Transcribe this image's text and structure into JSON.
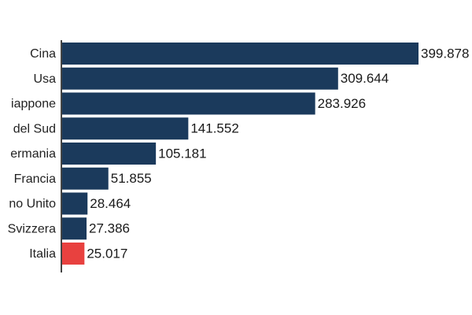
{
  "chart_data": {
    "type": "bar",
    "orientation": "horizontal",
    "categories": [
      "Cina",
      "Usa",
      "iappone",
      "del Sud",
      "ermania",
      "Francia",
      "no Unito",
      "Svizzera",
      "Italia"
    ],
    "values": [
      399.878,
      309.644,
      283.926,
      141.552,
      105.181,
      51.855,
      28.464,
      27.386,
      25.017
    ],
    "value_labels": [
      "399.878",
      "309.644",
      "283.926",
      "141.552",
      "105.181",
      "51.855",
      "28.464",
      "27.386",
      "25.017"
    ],
    "xlim": [
      0,
      400
    ],
    "grid": false,
    "colors": {
      "default": "#1b3a5c",
      "highlight": "#e8413f",
      "highlight_category": "Italia",
      "axis": "#444444"
    }
  }
}
